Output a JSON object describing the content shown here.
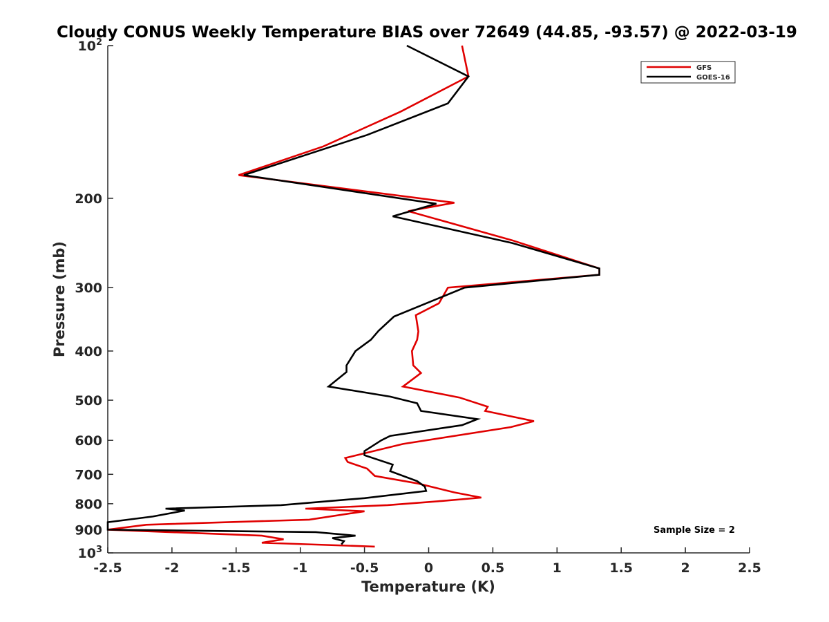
{
  "chart_data": {
    "type": "line",
    "title": "Cloudy CONUS Weekly Temperature BIAS over 72649 (44.85, -93.57) @ 2022-03-19",
    "xlabel": "Temperature (K)",
    "ylabel": "Pressure (mb)",
    "xlim": [
      -2.5,
      2.5
    ],
    "ylim": [
      100,
      1000
    ],
    "yscale": "log",
    "y_reversed": true,
    "x_ticks": [
      "-2.5",
      "-2",
      "-1.5",
      "-1",
      "-0.5",
      "0",
      "0.5",
      "1",
      "1.5",
      "2",
      "2.5"
    ],
    "x_tick_values": [
      -2.5,
      -2,
      -1.5,
      -1,
      -0.5,
      0,
      0.5,
      1,
      1.5,
      2,
      2.5
    ],
    "y_tick_values": [
      100,
      200,
      300,
      400,
      500,
      600,
      700,
      800,
      900,
      1000
    ],
    "y_ticks": [
      {
        "base": "10",
        "exp": "2"
      },
      {
        "base": "200",
        "exp": ""
      },
      {
        "base": "300",
        "exp": ""
      },
      {
        "base": "400",
        "exp": ""
      },
      {
        "base": "500",
        "exp": ""
      },
      {
        "base": "600",
        "exp": ""
      },
      {
        "base": "700",
        "exp": ""
      },
      {
        "base": "800",
        "exp": ""
      },
      {
        "base": "900",
        "exp": ""
      },
      {
        "base": "10",
        "exp": "3"
      }
    ],
    "grid": false,
    "legend_position": "top-right",
    "annotation": "Sample Size = 2",
    "series": [
      {
        "name": "GFS",
        "color": "#e00000",
        "points": [
          [
            0.26,
            100
          ],
          [
            0.31,
            115
          ],
          [
            -0.22,
            135
          ],
          [
            -0.82,
            158
          ],
          [
            -1.48,
            180
          ],
          [
            0.2,
            204
          ],
          [
            -0.16,
            212
          ],
          [
            0.65,
            242
          ],
          [
            1.33,
            275
          ],
          [
            1.33,
            283
          ],
          [
            0.15,
            300
          ],
          [
            0.08,
            322
          ],
          [
            -0.1,
            340
          ],
          [
            -0.08,
            366
          ],
          [
            -0.09,
            380
          ],
          [
            -0.13,
            400
          ],
          [
            -0.12,
            427
          ],
          [
            -0.06,
            442
          ],
          [
            -0.2,
            470
          ],
          [
            0.24,
            494
          ],
          [
            0.46,
            515
          ],
          [
            0.44,
            525
          ],
          [
            0.82,
            550
          ],
          [
            0.64,
            565
          ],
          [
            -0.2,
            610
          ],
          [
            -0.65,
            650
          ],
          [
            -0.63,
            662
          ],
          [
            -0.48,
            682
          ],
          [
            -0.42,
            705
          ],
          [
            -0.08,
            730
          ],
          [
            0.2,
            760
          ],
          [
            0.41,
            778
          ],
          [
            0.1,
            790
          ],
          [
            -0.32,
            805
          ],
          [
            -0.96,
            818
          ],
          [
            -0.5,
            828
          ],
          [
            -0.93,
            860
          ],
          [
            -2.2,
            880
          ],
          [
            -2.5,
            900
          ],
          [
            -1.3,
            925
          ],
          [
            -1.13,
            940
          ],
          [
            -1.3,
            955
          ],
          [
            -0.42,
            972
          ]
        ]
      },
      {
        "name": "GOES-16",
        "color": "#000000",
        "points": [
          [
            -0.17,
            100
          ],
          [
            0.31,
            115
          ],
          [
            0.15,
            130
          ],
          [
            -0.48,
            150
          ],
          [
            -1.44,
            180
          ],
          [
            0.06,
            205
          ],
          [
            -0.28,
            217
          ],
          [
            0.65,
            245
          ],
          [
            1.33,
            275
          ],
          [
            1.33,
            283
          ],
          [
            0.28,
            300
          ],
          [
            -0.27,
            342
          ],
          [
            -0.39,
            365
          ],
          [
            -0.45,
            380
          ],
          [
            -0.57,
            400
          ],
          [
            -0.64,
            427
          ],
          [
            -0.64,
            440
          ],
          [
            -0.78,
            470
          ],
          [
            -0.3,
            492
          ],
          [
            -0.09,
            507
          ],
          [
            -0.06,
            525
          ],
          [
            0.38,
            545
          ],
          [
            0.26,
            560
          ],
          [
            -0.3,
            588
          ],
          [
            -0.37,
            600
          ],
          [
            -0.5,
            630
          ],
          [
            -0.5,
            642
          ],
          [
            -0.28,
            670
          ],
          [
            -0.3,
            690
          ],
          [
            -0.09,
            722
          ],
          [
            -0.03,
            740
          ],
          [
            -0.02,
            755
          ],
          [
            -0.5,
            780
          ],
          [
            -1.15,
            805
          ],
          [
            -2.05,
            818
          ],
          [
            -1.9,
            825
          ],
          [
            -2.15,
            848
          ],
          [
            -2.5,
            870
          ],
          [
            -2.5,
            900
          ],
          [
            -0.88,
            910
          ],
          [
            -0.57,
            925
          ],
          [
            -0.75,
            935
          ],
          [
            -0.66,
            948
          ],
          [
            -0.68,
            962
          ]
        ]
      }
    ]
  }
}
